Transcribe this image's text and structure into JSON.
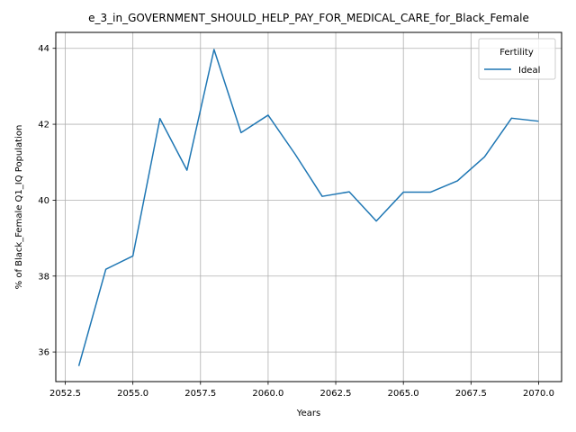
{
  "chart_data": {
    "type": "line",
    "title": "e_3_in_GOVERNMENT_SHOULD_HELP_PAY_FOR_MEDICAL_CARE_for_Black_Female",
    "xlabel": "Years",
    "ylabel": "% of Black_Female Q1_IQ Population",
    "xlim": [
      2052.15,
      2070.85
    ],
    "ylim": [
      35.22,
      44.42
    ],
    "xticks": [
      2052.5,
      2055.0,
      2057.5,
      2060.0,
      2062.5,
      2065.0,
      2067.5,
      2070.0
    ],
    "xtick_labels": [
      "2052.5",
      "2055.0",
      "2057.5",
      "2060.0",
      "2062.5",
      "2065.0",
      "2067.5",
      "2070.0"
    ],
    "yticks": [
      36,
      38,
      40,
      42,
      44
    ],
    "ytick_labels": [
      "36",
      "38",
      "40",
      "42",
      "44"
    ],
    "grid": true,
    "legend": {
      "title": "Fertility",
      "placement": "top-right"
    },
    "series": [
      {
        "name": "Ideal",
        "color": "#1f77b4",
        "x": [
          2053,
          2054,
          2055,
          2056,
          2057,
          2058,
          2059,
          2060,
          2061,
          2062,
          2063,
          2064,
          2065,
          2066,
          2067,
          2068,
          2069,
          2070
        ],
        "y": [
          35.63,
          38.18,
          38.53,
          42.15,
          40.79,
          43.97,
          41.78,
          42.24,
          41.21,
          40.1,
          40.22,
          39.45,
          40.21,
          40.21,
          40.51,
          41.14,
          42.16,
          42.08
        ]
      }
    ]
  }
}
